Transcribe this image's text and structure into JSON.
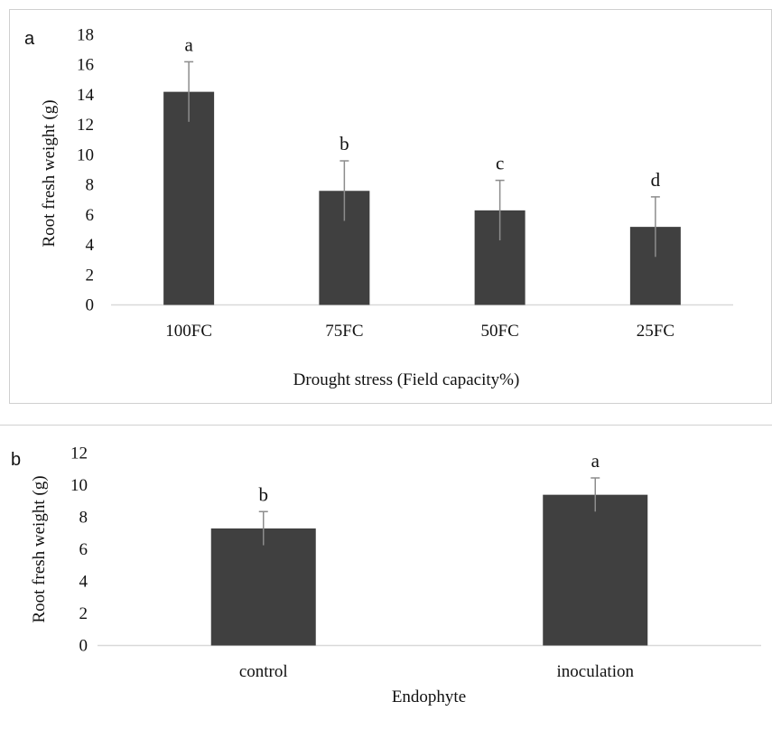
{
  "colors": {
    "bar": "#404040",
    "error_bar": "#8c8c8c",
    "axis": "#d9d9d9",
    "frame": "#d0d0d0"
  },
  "chart_data": [
    {
      "type": "bar",
      "panel_label": "a",
      "xlabel": "Drought stress (Field capacity%)",
      "ylabel": "Root fresh weight (g)",
      "ylim": [
        0,
        18
      ],
      "yticks": [
        0,
        2,
        4,
        6,
        8,
        10,
        12,
        14,
        16,
        18
      ],
      "grid": false,
      "categories": [
        "100FC",
        "75FC",
        "50FC",
        "25FC"
      ],
      "values": [
        14.2,
        7.6,
        6.3,
        5.2
      ],
      "errors": [
        2.0,
        2.0,
        2.0,
        2.0
      ],
      "significance_letters": [
        "a",
        "b",
        "c",
        "d"
      ]
    },
    {
      "type": "bar",
      "panel_label": "b",
      "xlabel": "Endophyte",
      "ylabel": "Root fresh weight (g)",
      "ylim": [
        0,
        12
      ],
      "yticks": [
        0,
        2,
        4,
        6,
        8,
        10,
        12
      ],
      "grid": false,
      "categories": [
        "control",
        "inoculation"
      ],
      "values": [
        7.3,
        9.4
      ],
      "errors": [
        1.05,
        1.05
      ],
      "significance_letters": [
        "b",
        "a"
      ]
    }
  ]
}
